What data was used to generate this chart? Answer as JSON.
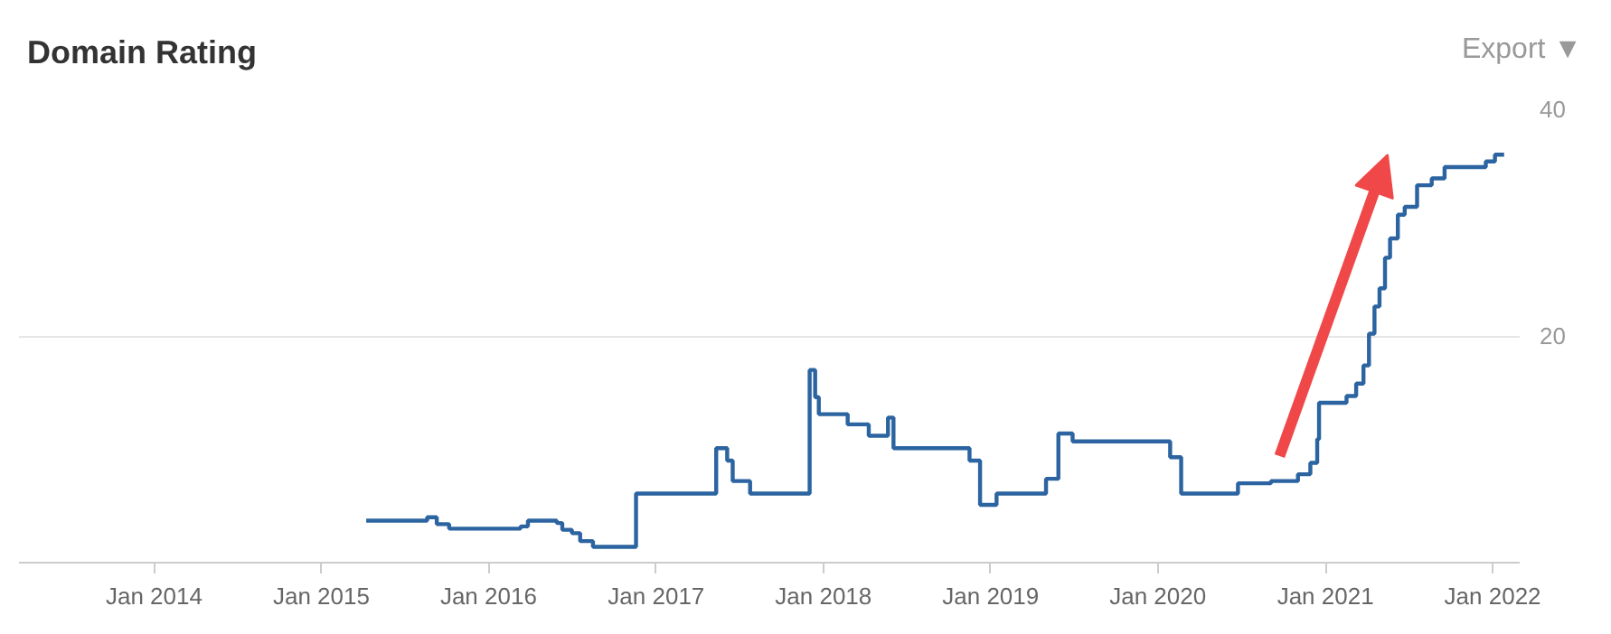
{
  "chart_data": {
    "type": "step",
    "title": "Domain Rating",
    "annotations": [
      "Export ▼"
    ],
    "x": [
      "2015-04-09",
      "2015-08-20",
      "2015-09-10",
      "2015-10-07",
      "2016-03-11",
      "2016-03-27",
      "2016-05-29",
      "2016-06-10",
      "2016-07-01",
      "2016-07-19",
      "2016-08-16",
      "2016-11-18",
      "2017-05-12",
      "2017-06-05",
      "2017-06-17",
      "2017-07-25",
      "2017-12-02",
      "2017-12-14",
      "2017-12-22",
      "2018-02-23",
      "2018-04-10",
      "2018-05-22",
      "2018-06-03",
      "2018-11-16",
      "2018-12-09",
      "2019-01-14",
      "2019-05-02",
      "2019-05-29",
      "2019-06-29",
      "2020-01-28",
      "2020-02-21",
      "2020-06-24",
      "2020-09-04",
      "2020-11-02",
      "2020-11-29",
      "2020-12-14",
      "2020-12-18",
      "2021-02-16",
      "2021-03-09",
      "2021-03-25",
      "2021-04-06",
      "2021-04-18",
      "2021-04-29",
      "2021-05-11",
      "2021-05-22",
      "2021-06-08",
      "2021-06-23",
      "2021-07-20",
      "2021-08-21",
      "2021-09-18",
      "2021-12-17",
      "2022-01-06",
      "2022-01-26"
    ],
    "series": [
      {
        "color": "#2b64a0",
        "values": [
          3.7,
          4.0,
          3.4,
          3.0,
          3.2,
          3.7,
          3.5,
          2.9,
          2.6,
          1.9,
          1.4,
          6.1,
          10.1,
          9.0,
          7.2,
          6.1,
          17.0,
          14.6,
          13.1,
          12.2,
          11.2,
          12.8,
          10.1,
          9.0,
          5.1,
          6.1,
          7.4,
          11.4,
          10.7,
          9.3,
          6.1,
          7.0,
          7.2,
          7.8,
          8.8,
          10.9,
          14.1,
          14.7,
          15.8,
          17.4,
          20.2,
          22.6,
          24.2,
          26.9,
          28.6,
          30.7,
          31.4,
          33.3,
          33.9,
          34.9,
          35.4,
          36.0,
          36.0
        ]
      }
    ],
    "xlim": [
      "2013-03-12",
      "2022-03-01"
    ],
    "ylim": [
      0,
      40
    ],
    "xticks": [
      {
        "value": "2014-01-01",
        "label": "Jan 2014"
      },
      {
        "value": "2015-01-01",
        "label": "Jan 2015"
      },
      {
        "value": "2016-01-01",
        "label": "Jan 2016"
      },
      {
        "value": "2017-01-01",
        "label": "Jan 2017"
      },
      {
        "value": "2018-01-01",
        "label": "Jan 2018"
      },
      {
        "value": "2019-01-01",
        "label": "Jan 2019"
      },
      {
        "value": "2020-01-01",
        "label": "Jan 2020"
      },
      {
        "value": "2021-01-01",
        "label": "Jan 2021"
      },
      {
        "value": "2022-01-01",
        "label": "Jan 2022"
      }
    ],
    "yticks": [
      {
        "value": 0,
        "label": null
      },
      20,
      40
    ],
    "grid": "y",
    "line_style": "solid",
    "marker": "none"
  }
}
